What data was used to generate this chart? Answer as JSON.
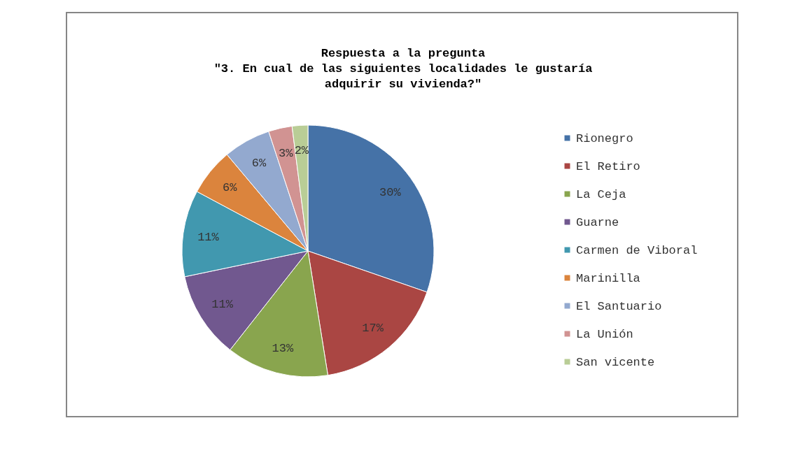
{
  "chart_data": {
    "type": "pie",
    "title": "Respuesta a la pregunta\n\"3. En cual de las siguientes localidades le gustaría\nadquirir su vivienda?\"",
    "categories": [
      "Rionegro",
      "El Retiro",
      "La Ceja",
      "Guarne",
      "Carmen de Viboral",
      "Marinilla",
      "El Santuario",
      "La Unión",
      "San vicente"
    ],
    "values": [
      30,
      17,
      13,
      11,
      11,
      6,
      6,
      3,
      2
    ],
    "value_labels": [
      "30%",
      "17%",
      "13%",
      "11%",
      "11%",
      "6%",
      "6%",
      "3%",
      "2%"
    ],
    "colors": [
      "#4572a7",
      "#aa4643",
      "#89a54e",
      "#71588f",
      "#4198af",
      "#db843d",
      "#93a9cf",
      "#d19392",
      "#b9cd96"
    ],
    "legend": "right"
  }
}
